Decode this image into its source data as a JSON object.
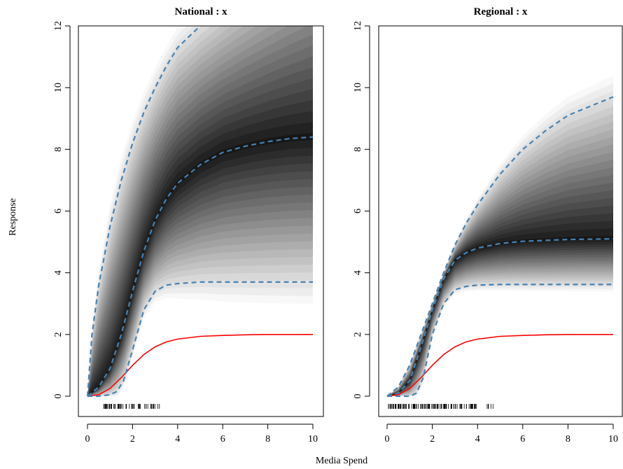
{
  "figure": {
    "xlabel": "Media Spend",
    "ylabel": "Response"
  },
  "chart_data": [
    {
      "type": "line",
      "title": "National : x",
      "xlim": [
        0,
        10
      ],
      "ylim": [
        0,
        12
      ],
      "xticks": [
        "0",
        "2",
        "4",
        "6",
        "8",
        "10"
      ],
      "yticks": [
        "0",
        "2",
        "4",
        "6",
        "8",
        "10",
        "12"
      ],
      "band": "grayscale posterior density, darkest along the median",
      "series": [
        {
          "role": "truth",
          "color": "#ff0000",
          "style": "solid",
          "x": [
            0,
            0.5,
            1,
            1.5,
            2,
            2.5,
            3,
            3.5,
            4,
            5,
            6,
            7,
            8,
            9,
            10
          ],
          "y": [
            0,
            0.05,
            0.25,
            0.6,
            1.0,
            1.35,
            1.6,
            1.76,
            1.85,
            1.94,
            1.97,
            1.99,
            2.0,
            2.0,
            2.0
          ]
        },
        {
          "role": "upper",
          "color": "#4682b4",
          "style": "dashed",
          "x": [
            0,
            0.2,
            0.5,
            1,
            1.5,
            2,
            2.5,
            3,
            3.5,
            4,
            5,
            5.5
          ],
          "y": [
            0,
            2.0,
            3.6,
            5.5,
            7.0,
            8.2,
            9.2,
            10.0,
            10.7,
            11.3,
            12.0,
            12.3
          ]
        },
        {
          "role": "median",
          "color": "#4682b4",
          "style": "dashed",
          "x": [
            0,
            0.5,
            1,
            1.5,
            2,
            2.5,
            3,
            3.5,
            4,
            5,
            6,
            7,
            8,
            9,
            10
          ],
          "y": [
            0,
            0.3,
            0.9,
            2.0,
            3.4,
            4.7,
            5.7,
            6.4,
            6.9,
            7.5,
            7.9,
            8.1,
            8.25,
            8.35,
            8.4
          ]
        },
        {
          "role": "lower",
          "color": "#4682b4",
          "style": "dashed",
          "x": [
            0,
            0.5,
            1,
            1.3,
            1.6,
            2,
            2.5,
            3,
            3.5,
            4,
            5,
            6,
            8,
            10
          ],
          "y": [
            0,
            0,
            0.05,
            0.15,
            0.5,
            1.5,
            2.8,
            3.4,
            3.6,
            3.65,
            3.7,
            3.7,
            3.7,
            3.7
          ]
        }
      ],
      "rug": {
        "min": 0.7,
        "max": 3.2,
        "count": 60
      }
    },
    {
      "type": "line",
      "title": "Regional : x",
      "xlim": [
        0,
        10
      ],
      "ylim": [
        0,
        12
      ],
      "xticks": [
        "0",
        "2",
        "4",
        "6",
        "8",
        "10"
      ],
      "yticks": [
        "0",
        "2",
        "4",
        "6",
        "8",
        "10",
        "12"
      ],
      "band": "grayscale posterior density, darkest along the median",
      "series": [
        {
          "role": "truth",
          "color": "#ff0000",
          "style": "solid",
          "x": [
            0,
            0.5,
            1,
            1.5,
            2,
            2.5,
            3,
            3.5,
            4,
            5,
            6,
            7,
            8,
            9,
            10
          ],
          "y": [
            0,
            0.05,
            0.25,
            0.6,
            1.0,
            1.35,
            1.6,
            1.76,
            1.85,
            1.94,
            1.97,
            1.99,
            2.0,
            2.0,
            2.0
          ]
        },
        {
          "role": "upper",
          "color": "#4682b4",
          "style": "dashed",
          "x": [
            0,
            0.5,
            1,
            1.5,
            2,
            2.5,
            3,
            3.5,
            4,
            5,
            6,
            7,
            8,
            9,
            10
          ],
          "y": [
            0,
            0.3,
            1.0,
            2.0,
            3.0,
            4.0,
            4.9,
            5.6,
            6.2,
            7.2,
            8.0,
            8.6,
            9.1,
            9.4,
            9.7
          ]
        },
        {
          "role": "median",
          "color": "#4682b4",
          "style": "dashed",
          "x": [
            0,
            0.5,
            1,
            1.5,
            2,
            2.5,
            3,
            3.5,
            4,
            5,
            6,
            7,
            8,
            10
          ],
          "y": [
            0,
            0.1,
            0.5,
            1.6,
            2.8,
            3.8,
            4.4,
            4.65,
            4.8,
            4.95,
            5.02,
            5.05,
            5.08,
            5.1
          ]
        },
        {
          "role": "lower",
          "color": "#4682b4",
          "style": "dashed",
          "x": [
            0,
            1,
            1.3,
            1.6,
            2,
            2.5,
            3,
            3.5,
            4,
            5,
            6,
            8,
            10
          ],
          "y": [
            0,
            0,
            0.1,
            0.6,
            2.0,
            3.0,
            3.45,
            3.56,
            3.6,
            3.62,
            3.62,
            3.62,
            3.62
          ]
        }
      ],
      "rug": {
        "min": 0.05,
        "max": 4.9,
        "count": 120
      }
    }
  ]
}
